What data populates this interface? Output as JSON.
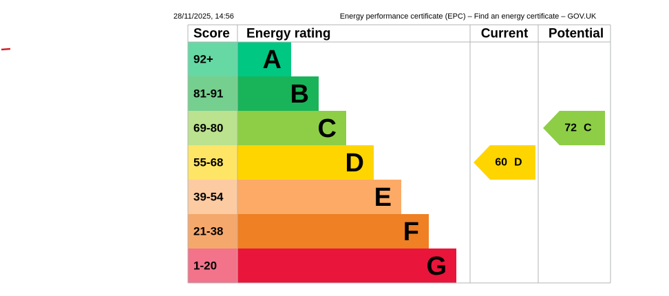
{
  "header": {
    "date": "28/11/2025, 14:56",
    "title": "Energy performance certificate (EPC) – Find an energy certificate – GOV.UK"
  },
  "table": {
    "columns": [
      "Score",
      "Energy rating",
      "Current",
      "Potential"
    ],
    "rows": [
      {
        "score": "92+",
        "rating": "A"
      },
      {
        "score": "81-91",
        "rating": "B"
      },
      {
        "score": "69-80",
        "rating": "C"
      },
      {
        "score": "55-68",
        "rating": "D"
      },
      {
        "score": "39-54",
        "rating": "E"
      },
      {
        "score": "21-38",
        "rating": "F"
      },
      {
        "score": "1-20",
        "rating": "G"
      }
    ]
  },
  "current": {
    "value": 60,
    "band": "D"
  },
  "potential": {
    "value": 72,
    "band": "C"
  }
}
